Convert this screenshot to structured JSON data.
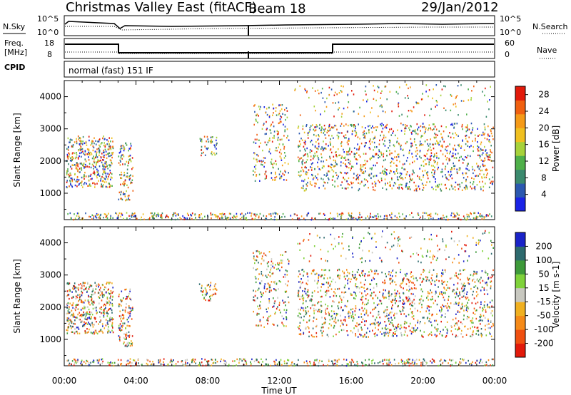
{
  "header": {
    "title": "Christmas Valley East (fitACF)",
    "beam": "Beam 18",
    "date": "29/Jan/2012"
  },
  "params": {
    "nsky_label": "N.Sky",
    "nsky_ticks": [
      "10^5",
      "10^0"
    ],
    "nsearch_label": "N.Search",
    "nsearch_ticks": [
      "10^5",
      "10^0"
    ],
    "freq_label_1": "Freq.",
    "freq_label_2": "[MHz]",
    "freq_ticks": [
      "18",
      "8"
    ],
    "nave_label": "Nave",
    "nave_ticks": [
      "60",
      "0"
    ],
    "cpid_label": "CPID",
    "cpid_text": "normal (fast) 151 IF"
  },
  "chart_data": [
    {
      "type": "heatmap",
      "name": "power-panel",
      "ylabel": "Slant Range [km]",
      "yticks": [
        "1000",
        "2000",
        "3000",
        "4000"
      ],
      "ylim": [
        180,
        4500
      ],
      "colorbar_label": "Power [dB]",
      "colorbar_ticks": [
        "4",
        "8",
        "12",
        "16",
        "20",
        "24",
        "28"
      ],
      "colorbar_range": [
        0,
        30
      ],
      "colors": [
        "#1a23e6",
        "#2b58b0",
        "#3b8a6e",
        "#4fb04a",
        "#a7d23a",
        "#f0c020",
        "#f59a18",
        "#f06010",
        "#e21a0a"
      ]
    },
    {
      "type": "heatmap",
      "name": "velocity-panel",
      "ylabel": "Slant Range [km]",
      "yticks": [
        "1000",
        "2000",
        "3000",
        "4000"
      ],
      "ylim": [
        180,
        4500
      ],
      "colorbar_label": "Velocity [m s-1]",
      "colorbar_ticks": [
        "200",
        "100",
        "50",
        "15",
        "-15",
        "-50",
        "-100",
        "-200"
      ],
      "colorbar_range": [
        -250,
        250
      ],
      "colors": [
        "#1a23c8",
        "#2d6a6e",
        "#3e9a3a",
        "#7fd23a",
        "#c8c8c0",
        "#f0b020",
        "#f58a18",
        "#f05010",
        "#e21a0a"
      ]
    }
  ],
  "time_axis": {
    "xlabel": "Time UT",
    "ticks": [
      "00:00",
      "04:00",
      "08:00",
      "12:00",
      "16:00",
      "20:00",
      "00:00"
    ]
  }
}
